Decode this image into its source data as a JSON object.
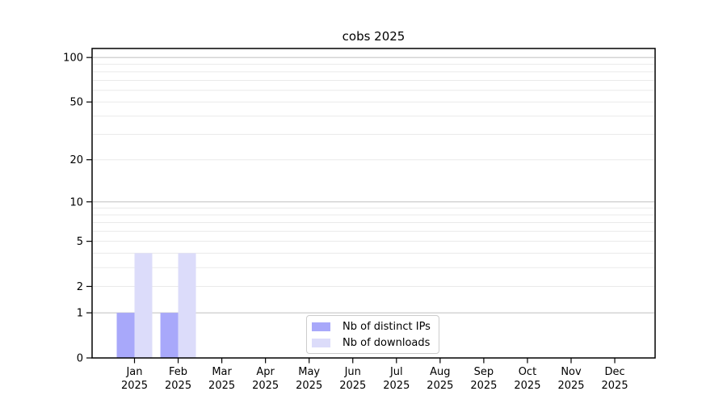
{
  "chart_data": {
    "type": "bar",
    "title": "cobs 2025",
    "year": "2025",
    "categories": [
      "Jan",
      "Feb",
      "Mar",
      "Apr",
      "May",
      "Jun",
      "Jul",
      "Aug",
      "Sep",
      "Oct",
      "Nov",
      "Dec"
    ],
    "series": [
      {
        "name": "Nb of distinct IPs",
        "color": "#a8a8fa",
        "values": [
          1,
          1,
          0,
          0,
          0,
          0,
          0,
          0,
          0,
          0,
          0,
          0
        ]
      },
      {
        "name": "Nb of downloads",
        "color": "#dcdcfa",
        "values": [
          4,
          4,
          0,
          0,
          0,
          0,
          0,
          0,
          0,
          0,
          0,
          0
        ]
      }
    ],
    "yscale": "log1p",
    "ylim": [
      0,
      115
    ],
    "yticks": [
      0,
      1,
      2,
      5,
      10,
      20,
      50,
      100
    ],
    "grid_major": [
      1,
      10,
      100
    ],
    "grid_minor": [
      2,
      3,
      4,
      5,
      6,
      7,
      8,
      9,
      20,
      30,
      40,
      50,
      60,
      70,
      80,
      90
    ],
    "legend_position": "lower center",
    "grid_major_color": "#c6c6c6",
    "grid_minor_color": "#eaeaea",
    "axis_color": "#000000",
    "text_color": "#000000"
  },
  "legend": {
    "border_color": "#cccccc"
  }
}
